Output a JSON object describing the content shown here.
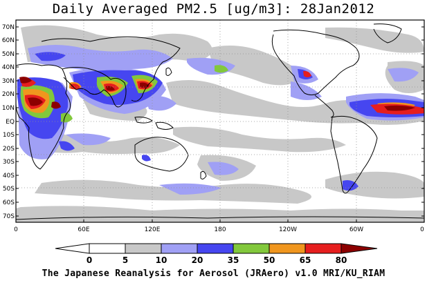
{
  "title": "Daily Averaged PM2.5 [ug/m3]: 28Jan2012",
  "credit": "The Japanese Reanalysis for Aerosol (JRAero) v1.0 MRI/KU_RIAM",
  "latitude_labels": [
    "70N",
    "60N",
    "50N",
    "40N",
    "30N",
    "20N",
    "10N",
    "EQ",
    "10S",
    "20S",
    "30S",
    "40S",
    "50S",
    "60S",
    "70S"
  ],
  "longitude_labels": [
    "0",
    "60E",
    "120E",
    "180",
    "120W",
    "60W",
    "0"
  ],
  "colorbar": {
    "labels": [
      "0",
      "5",
      "10",
      "20",
      "35",
      "50",
      "65",
      "80"
    ],
    "colors": [
      "#ffffff",
      "#c8c8c8",
      "#a0a0f5",
      "#4646f0",
      "#82c83c",
      "#f0961e",
      "#e61e1e",
      "#8c0000"
    ]
  }
}
